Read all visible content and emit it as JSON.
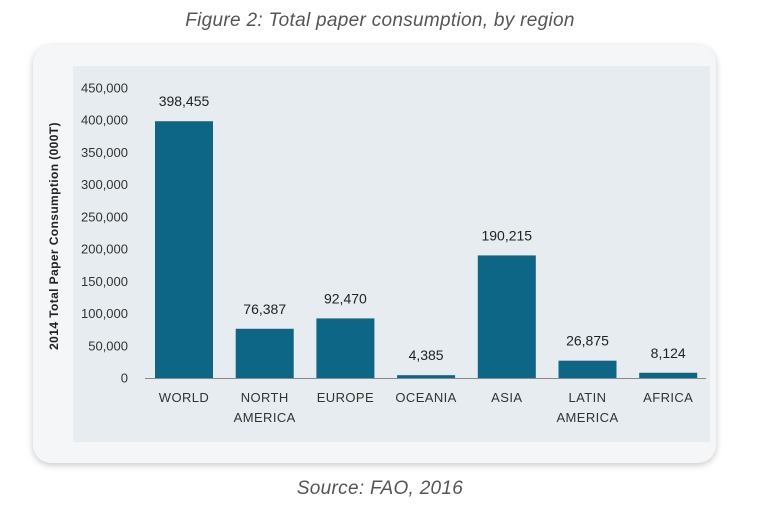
{
  "figure_title": "Figure 2: Total paper consumption, by region",
  "source": "Source: FAO, 2016",
  "colors": {
    "bar": "#0d6685",
    "axis": "#888888"
  },
  "chart_data": {
    "type": "bar",
    "title": "",
    "xlabel": "",
    "ylabel": "2014 Total Paper Consumption (000T)",
    "categories": [
      [
        "WORLD"
      ],
      [
        "NORTH",
        "AMERICA"
      ],
      [
        "EUROPE"
      ],
      [
        "OCEANIA"
      ],
      [
        "ASIA"
      ],
      [
        "LATIN",
        "AMERICA"
      ],
      [
        "AFRICA"
      ]
    ],
    "values": [
      398455,
      76387,
      92470,
      4385,
      190215,
      26875,
      8124
    ],
    "data_labels": [
      "398,455",
      "76,387",
      "92,470",
      "4,385",
      "190,215",
      "26,875",
      "8,124"
    ],
    "yticks": [
      0,
      50000,
      100000,
      150000,
      200000,
      250000,
      300000,
      350000,
      400000,
      450000
    ],
    "ytick_labels": [
      "0",
      "50,000",
      "100,000",
      "150,000",
      "200,000",
      "250,000",
      "300,000",
      "350,000",
      "400,000",
      "450,000"
    ],
    "ylim": [
      0,
      450000
    ],
    "grid": false,
    "legend": false
  }
}
